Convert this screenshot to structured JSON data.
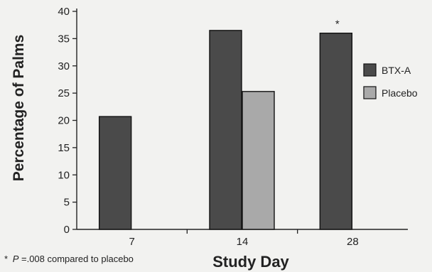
{
  "chart_data": {
    "type": "bar",
    "title": "",
    "xlabel": "Study Day",
    "ylabel": "Percentage of Palms",
    "categories": [
      "7",
      "14",
      "28"
    ],
    "series": [
      {
        "name": "BTX-A",
        "values": [
          20.7,
          36.5,
          36.0
        ]
      },
      {
        "name": "Placebo",
        "values": [
          null,
          25.3,
          null
        ]
      }
    ],
    "ylim": [
      0,
      40
    ],
    "yticks": [
      "0",
      "5",
      "10",
      "15",
      "20",
      "25",
      "30",
      "35",
      "40"
    ],
    "annotations": [
      {
        "category": "28",
        "series": "BTX-A",
        "text": "*"
      }
    ],
    "footnote": {
      "marker": "*",
      "p_symbol": "P",
      "text": " =.008 compared to placebo"
    },
    "legend_position": "right",
    "grid": false,
    "colors": {
      "BTX-A": "#4a4a4a",
      "Placebo": "#a9a9a9",
      "axis": "#222222"
    }
  }
}
